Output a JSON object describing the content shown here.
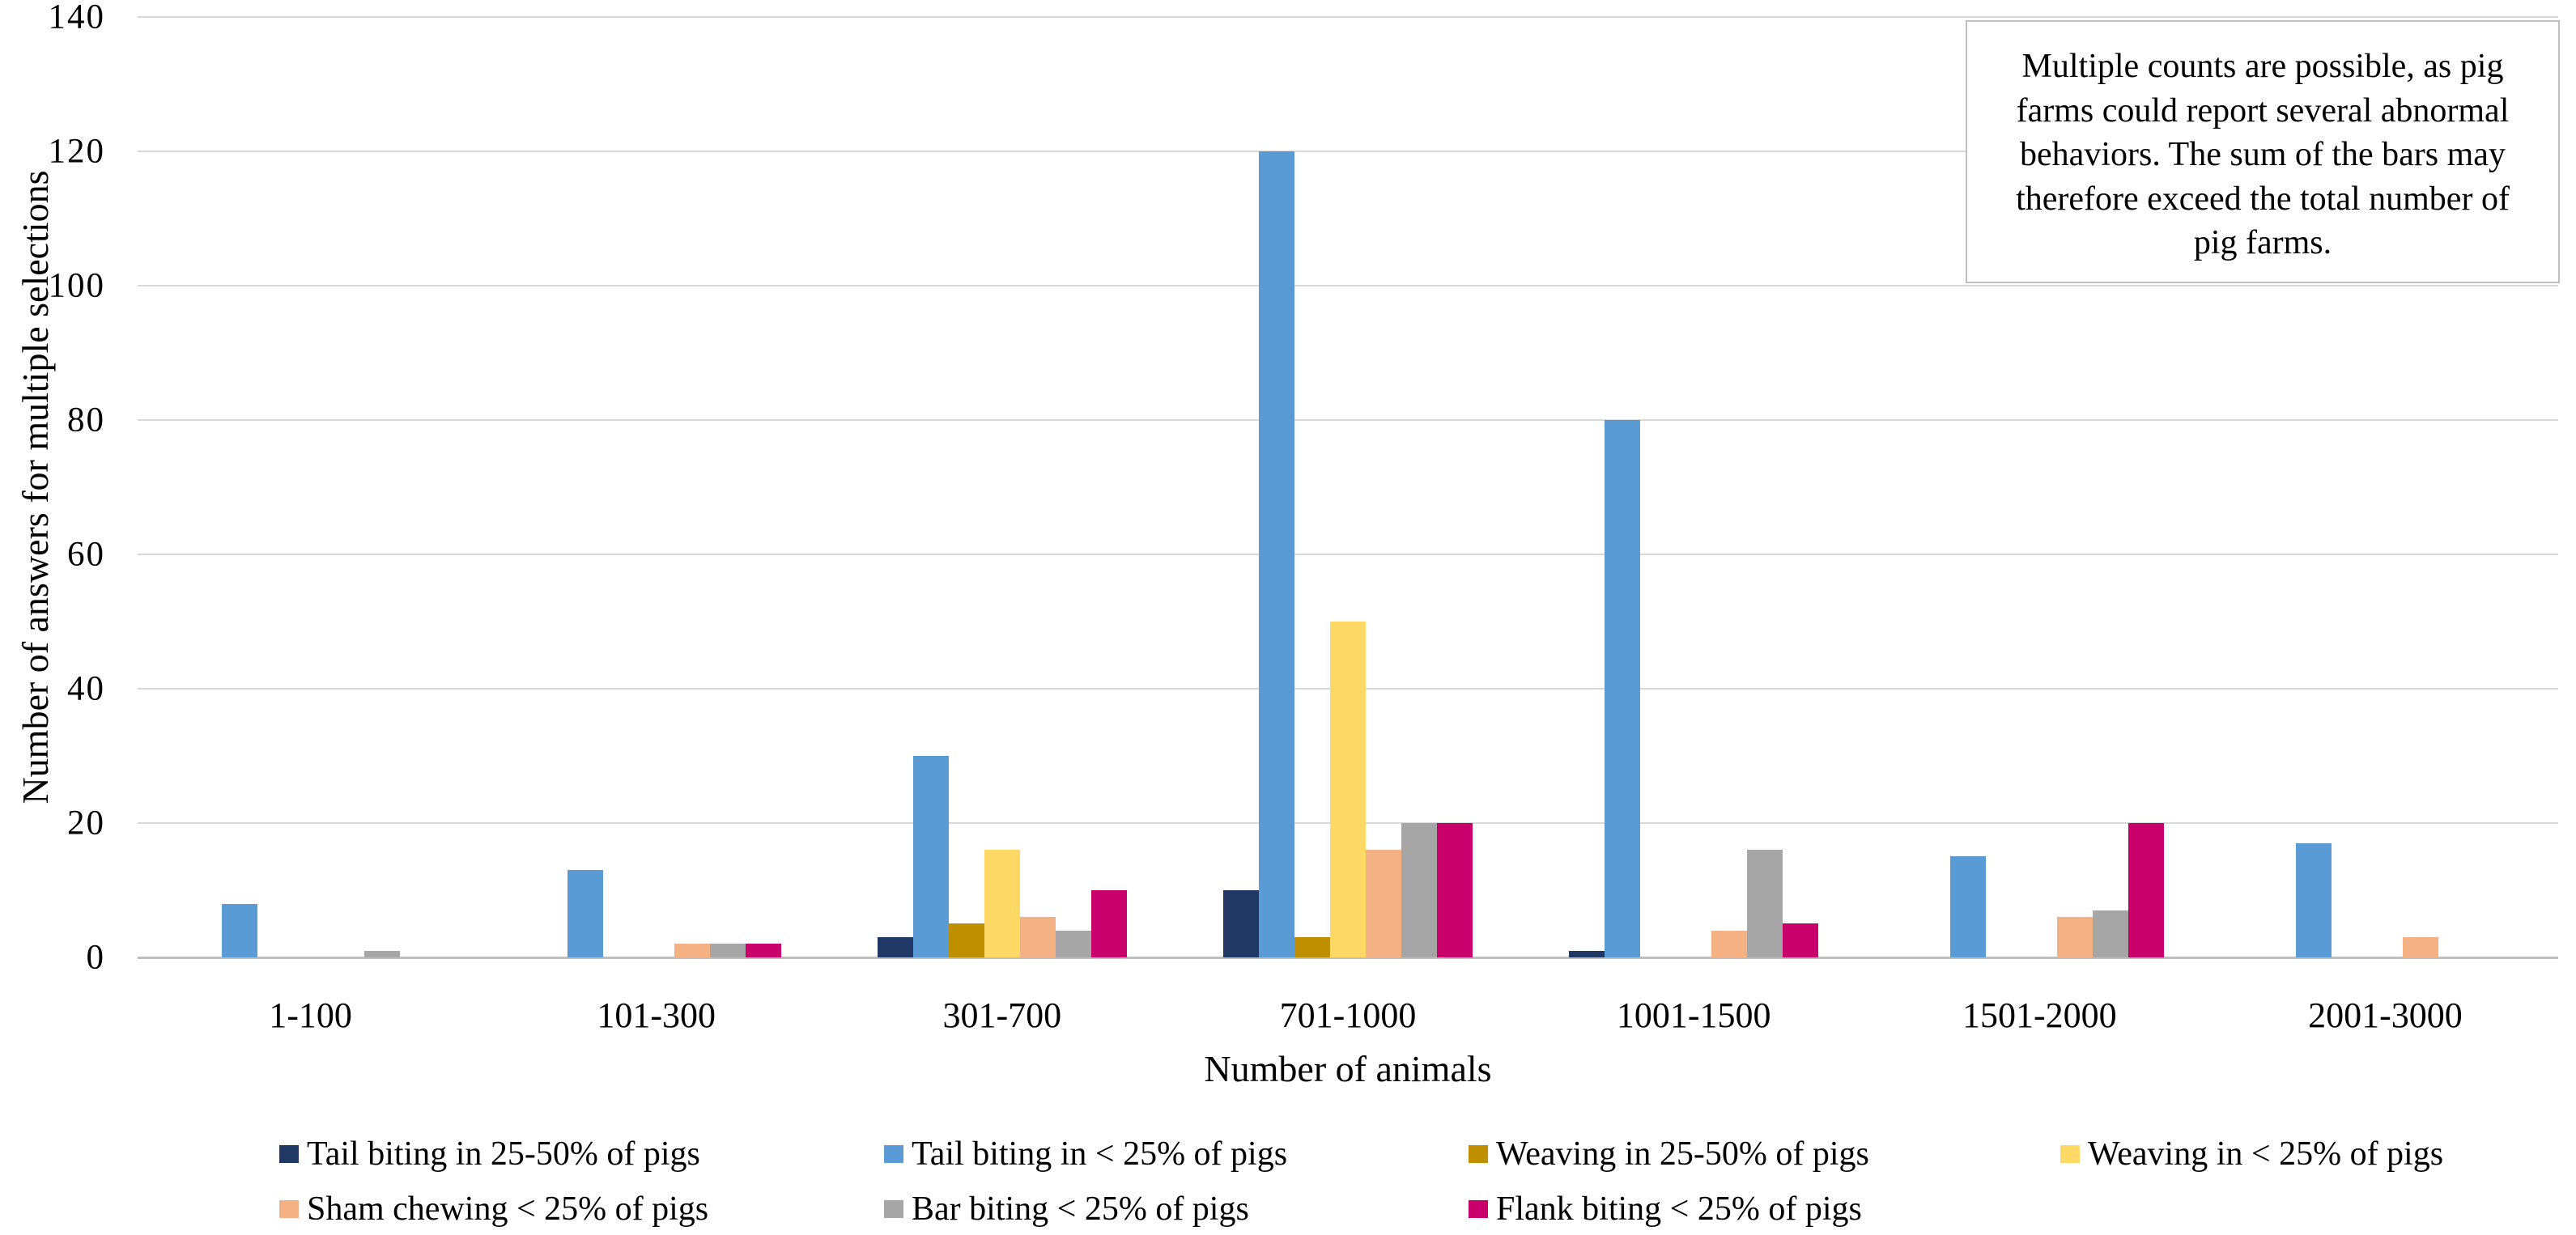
{
  "chart_data": {
    "type": "bar",
    "title": "",
    "xlabel": "Number of animals",
    "ylabel": "Number of answers for multiple selections",
    "ylim": [
      0,
      140
    ],
    "yticks": [
      0,
      20,
      40,
      60,
      80,
      100,
      120,
      140
    ],
    "grid": "horizontal gridlines on",
    "legend_position": "bottom",
    "categories": [
      "1-100",
      "101-300",
      "301-700",
      "701-1000",
      "1001-1500",
      "1501-2000",
      "2001-3000"
    ],
    "series": [
      {
        "name": "Tail biting in 25-50% of pigs",
        "color": "#1F3864",
        "values": [
          0,
          0,
          3,
          10,
          1,
          0,
          0
        ]
      },
      {
        "name": "Tail biting in < 25% of pigs",
        "color": "#5B9BD5",
        "values": [
          8,
          13,
          30,
          120,
          80,
          15,
          17
        ]
      },
      {
        "name": "Weaving in 25-50% of pigs",
        "color": "#BF8F00",
        "values": [
          0,
          0,
          5,
          3,
          0,
          0,
          0
        ]
      },
      {
        "name": "Weaving in < 25% of pigs",
        "color": "#FFD966",
        "values": [
          0,
          0,
          16,
          50,
          0,
          0,
          0
        ]
      },
      {
        "name": "Sham chewing < 25% of pigs",
        "color": "#F4B183",
        "values": [
          0,
          2,
          6,
          16,
          4,
          6,
          3
        ]
      },
      {
        "name": "Bar biting < 25% of pigs",
        "color": "#A6A6A6",
        "values": [
          1,
          2,
          4,
          20,
          16,
          7,
          0
        ]
      },
      {
        "name": "Flank biting < 25% of pigs",
        "color": "#C9006B",
        "values": [
          0,
          2,
          10,
          20,
          5,
          20,
          0
        ]
      }
    ],
    "legend_rows": [
      [
        0,
        1,
        2,
        3
      ],
      [
        4,
        5,
        6
      ]
    ],
    "annotation": "Multiple counts are possible, as pig farms could report several abnormal behaviors. The sum of the bars may therefore exceed the total number of pig farms."
  },
  "colors": {
    "gridline": "#D9D9D9",
    "axis_line": "#BFBFBF",
    "annotation_border": "#BFBFBF",
    "text": "#000000",
    "background": "#FFFFFF"
  }
}
